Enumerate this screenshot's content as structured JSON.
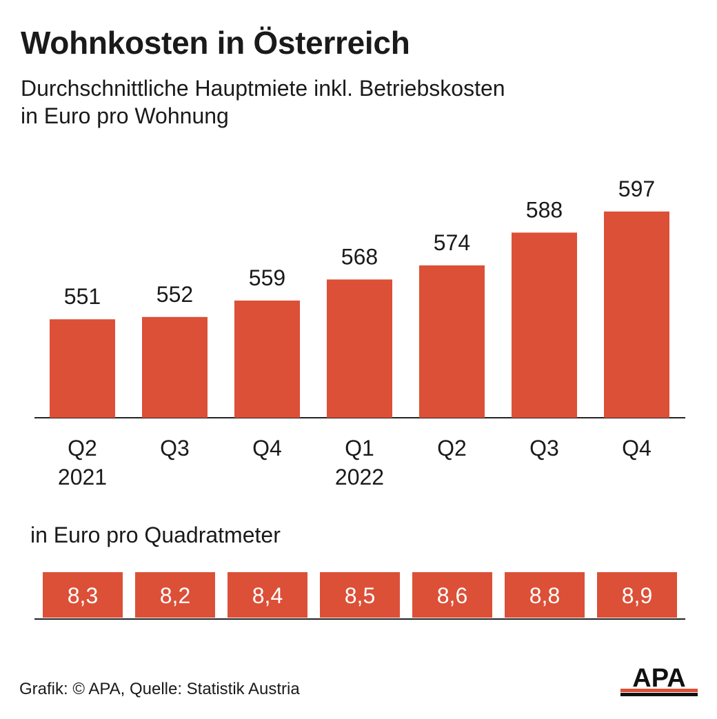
{
  "header": {
    "title": "Wohnkosten in Österreich",
    "subtitle_line1": "Durchschnittliche Hauptmiete inkl. Betriebskosten",
    "subtitle_line2": "in Euro pro Wohnung"
  },
  "secondary": {
    "label": "in Euro pro Quadratmeter"
  },
  "footer": {
    "source": "Grafik: © APA, Quelle: Statistik Austria",
    "logo_text": "APA"
  },
  "colors": {
    "bar": "#db5037",
    "axis": "#222222",
    "text": "#1a1a1a",
    "label_on_bar": "#ffffff"
  },
  "chart_data": [
    {
      "type": "bar",
      "categories": [
        "Q2\n2021",
        "Q3",
        "Q4",
        "Q1\n2022",
        "Q2",
        "Q3",
        "Q4"
      ],
      "values": [
        551,
        552,
        559,
        568,
        574,
        588,
        597
      ],
      "value_labels": [
        "551",
        "552",
        "559",
        "568",
        "574",
        "588",
        "597"
      ],
      "title": "Wohnkosten in Österreich",
      "ylabel": "",
      "xlabel": "",
      "ylim": [
        0,
        597
      ],
      "grid": false,
      "legend": "none"
    },
    {
      "type": "table",
      "categories": [
        "Q2\n2021",
        "Q3",
        "Q4",
        "Q1\n2022",
        "Q2",
        "Q3",
        "Q4"
      ],
      "values": [
        8.3,
        8.2,
        8.4,
        8.5,
        8.6,
        8.8,
        8.9
      ],
      "value_labels": [
        "8,3",
        "8,2",
        "8,4",
        "8,5",
        "8,6",
        "8,8",
        "8,9"
      ],
      "title": "in Euro pro Quadratmeter"
    }
  ]
}
